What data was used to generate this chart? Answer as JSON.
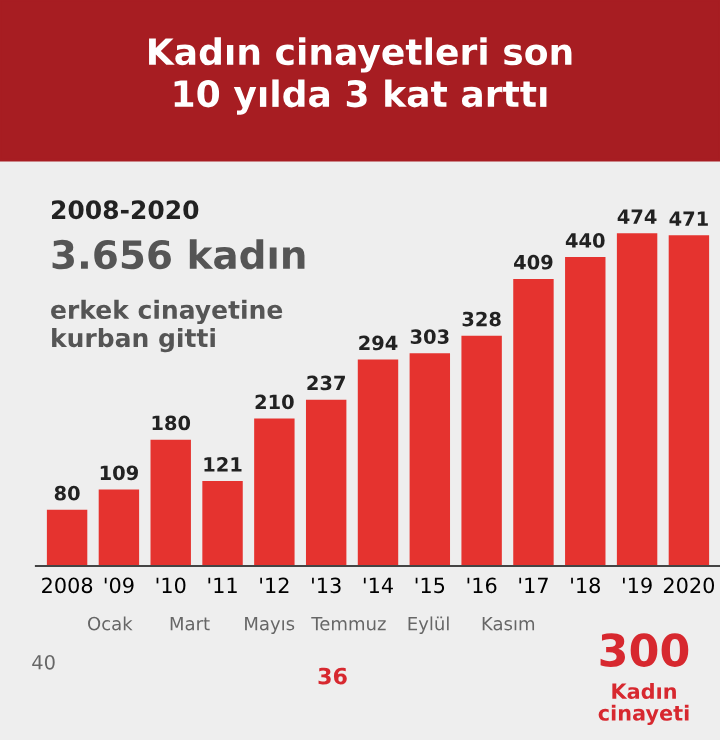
{
  "chart_data": [
    {
      "type": "bar",
      "title": "Kadın cinayetleri son 10 yılda 3 kat arttı",
      "categories": [
        "2008",
        "'09",
        "'10",
        "'11",
        "'12",
        "'13",
        "'14",
        "'15",
        "'16",
        "'17",
        "'18",
        "'19",
        "2020"
      ],
      "values": [
        80,
        109,
        180,
        121,
        210,
        237,
        294,
        303,
        328,
        409,
        440,
        474,
        471
      ],
      "color": "#e5332f",
      "data_labels": true,
      "annotations": [
        "2008-2020",
        "3.656 kadın",
        "erkek cinayetine kurban gitti"
      ]
    },
    {
      "type": "other",
      "color": "#d7282f",
      "annotations": [
        "Ocak",
        "Mart",
        "Mayıs",
        "Temmuz",
        "Eylül",
        "Kasım",
        "40",
        "36",
        "300",
        "Kadın cinayeti"
      ]
    }
  ]
}
